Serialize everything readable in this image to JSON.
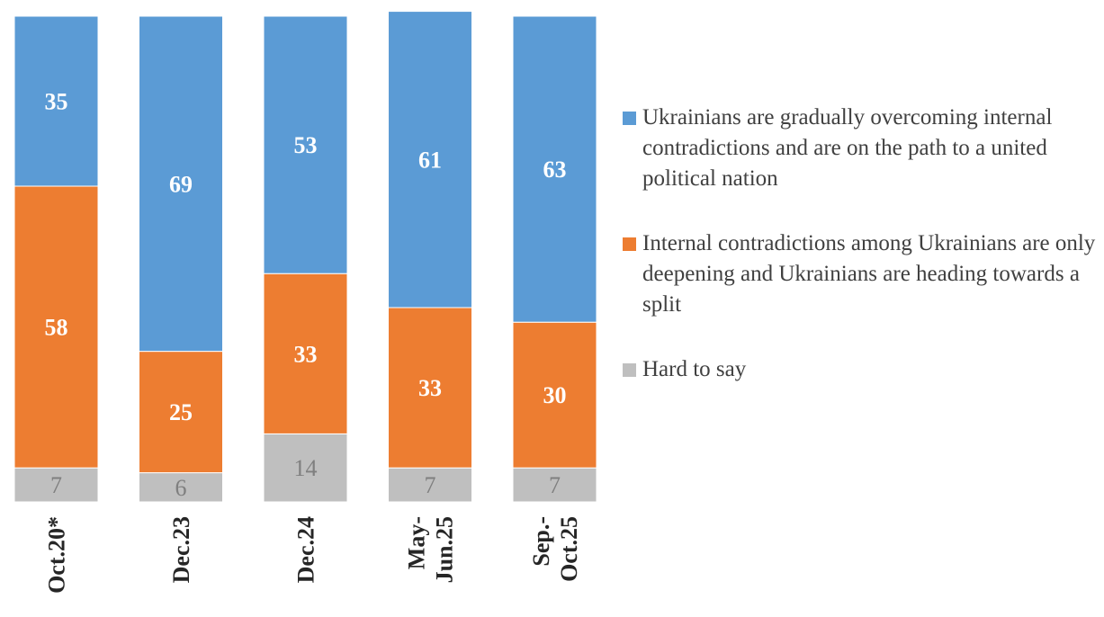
{
  "chart_data": {
    "type": "stacked-bar",
    "categories": [
      "Oct.20*",
      "Dec.23",
      "Dec.24",
      "May-Jun.25",
      "Sep.-Oct.25"
    ],
    "category_lines": [
      [
        "Oct.20*"
      ],
      [
        "Dec.23"
      ],
      [
        "Dec.24"
      ],
      [
        "May-",
        "Jun.25"
      ],
      [
        "Sep.-",
        "Oct.25"
      ]
    ],
    "series": [
      {
        "name": "Hard to say",
        "values": [
          7,
          6,
          14,
          7,
          7
        ],
        "color": "#BFBFBF",
        "label_color": "#7F7F7F"
      },
      {
        "name": "Internal contradictions among Ukrainians are only deepening and Ukrainians are heading towards a split",
        "values": [
          58,
          25,
          33,
          33,
          30
        ],
        "color": "#ED7D31",
        "label_color": "#FFFFFF"
      },
      {
        "name": "Ukrainians are gradually overcoming internal contradictions and are on the path to a united political nation",
        "values": [
          35,
          69,
          53,
          61,
          63
        ],
        "color": "#5B9BD5",
        "label_color": "#FFFFFF"
      }
    ],
    "ylim": [
      0,
      100
    ],
    "legend_position": "right"
  },
  "legend": [
    {
      "label": "Ukrainians are gradually overcoming internal contradictions and are on the path to a united political nation",
      "color": "#5B9BD5"
    },
    {
      "label": "Internal contradictions among Ukrainians are only deepening and Ukrainians are heading towards a split",
      "color": "#ED7D31"
    },
    {
      "label": "Hard to say",
      "color": "#BFBFBF"
    }
  ]
}
